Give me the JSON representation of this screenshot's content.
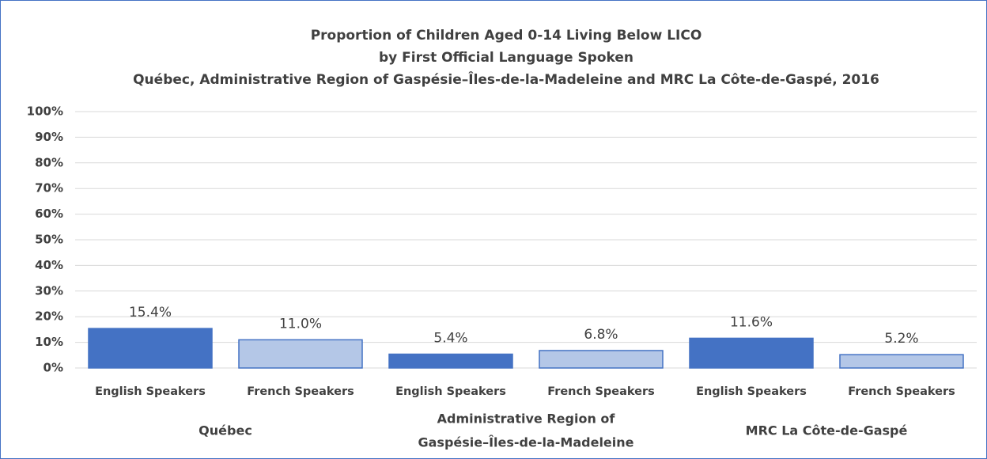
{
  "chart_data": {
    "type": "bar",
    "title": [
      "Proportion of Children Aged 0-14 Living Below LICO",
      "by First Official Language Spoken",
      "Québec, Administrative Region of Gaspésie–Îles-de-la-Madeleine and MRC La Côte-de-Gaspé, 2016"
    ],
    "categories": [
      "English Speakers",
      "French Speakers",
      "English Speakers",
      "French Speakers",
      "English Speakers",
      "French Speakers"
    ],
    "group_labels": [
      [
        "Québec"
      ],
      [
        "Administrative Region of",
        "Gaspésie–Îles-de-la-Madeleine"
      ],
      [
        "MRC La Côte-de-Gaspé"
      ]
    ],
    "values": [
      15.4,
      11.0,
      5.4,
      6.8,
      11.6,
      5.2
    ],
    "value_labels": [
      "15.4%",
      "11.0%",
      "5.4%",
      "6.8%",
      "11.6%",
      "5.2%"
    ],
    "colors": [
      "#4472c4",
      "#b4c7e7",
      "#4472c4",
      "#b4c7e7",
      "#4472c4",
      "#b4c7e7"
    ],
    "edge_color": "#4472c4",
    "ylim": [
      0,
      100
    ],
    "yticks": [
      {
        "value": 0,
        "label": "0%"
      },
      {
        "value": 10,
        "label": "10%"
      },
      {
        "value": 20,
        "label": "20%"
      },
      {
        "value": 30,
        "label": "30%"
      },
      {
        "value": 40,
        "label": "40%"
      },
      {
        "value": 50,
        "label": "50%"
      },
      {
        "value": 60,
        "label": "60%"
      },
      {
        "value": 70,
        "label": "70%"
      },
      {
        "value": 80,
        "label": "80%"
      },
      {
        "value": 90,
        "label": "90%"
      },
      {
        "value": 100,
        "label": "100%"
      }
    ],
    "grid": true
  }
}
